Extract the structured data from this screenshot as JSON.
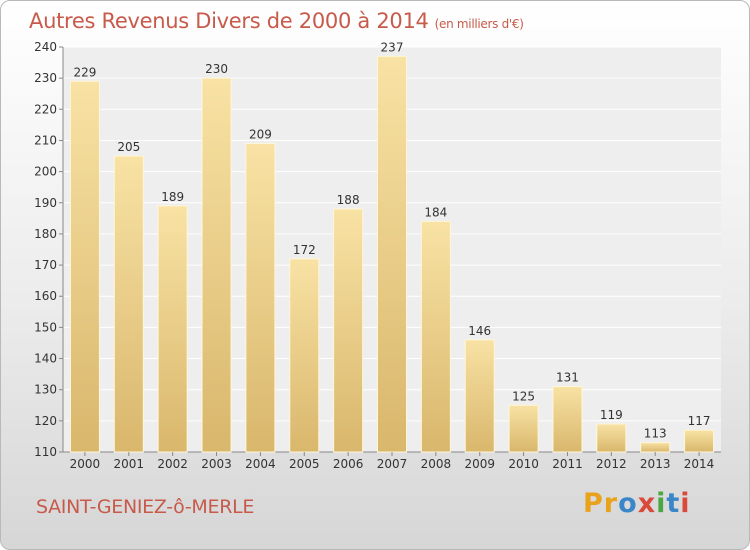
{
  "title": "Autres Revenus Divers de 2000 à 2014",
  "unit": "(en milliers d'€)",
  "location": "SAINT-GENIEZ-ô-MERLE",
  "brand": {
    "letters": [
      "P",
      "r",
      "o",
      "x",
      "i",
      "t",
      "i"
    ],
    "colors": [
      "#e8a21c",
      "#e8a21c",
      "#3a86c8",
      "#d94a3a",
      "#4aa843",
      "#3a86c8",
      "#d94a3a"
    ]
  },
  "colors": {
    "bar_light": "#f8e2a4",
    "bar_dark": "#d9b76c",
    "plot_bg": "#eeeeee",
    "grid": "#ffffff",
    "text": "#333333",
    "accent": "#c75a4a"
  },
  "chart_data": {
    "type": "bar",
    "categories": [
      "2000",
      "2001",
      "2002",
      "2003",
      "2004",
      "2005",
      "2006",
      "2007",
      "2008",
      "2009",
      "2010",
      "2011",
      "2012",
      "2013",
      "2014"
    ],
    "values": [
      229,
      205,
      189,
      230,
      209,
      172,
      188,
      237,
      184,
      146,
      125,
      131,
      119,
      113,
      117
    ],
    "data_labels": [
      "229",
      "205",
      "189",
      "230",
      "209",
      "172",
      "188",
      "237",
      "184",
      "146",
      "125",
      "131",
      "119",
      "113",
      "117"
    ],
    "yticks": [
      "110",
      "120",
      "130",
      "140",
      "150",
      "160",
      "170",
      "180",
      "190",
      "200",
      "210",
      "220",
      "230",
      "240"
    ],
    "ylim": [
      110,
      240
    ],
    "ytick_step": 10,
    "grid": true,
    "legend": "none",
    "xlabel": "",
    "ylabel": ""
  }
}
